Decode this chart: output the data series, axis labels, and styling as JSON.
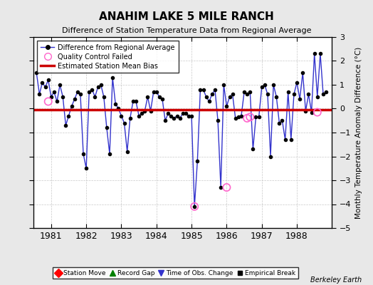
{
  "title": "ANAHIM LAKE 5 MILE RANCH",
  "subtitle": "Difference of Station Temperature Data from Regional Average",
  "ylabel": "Monthly Temperature Anomaly Difference (°C)",
  "credit": "Berkeley Earth",
  "bias": -0.05,
  "ylim": [
    -5,
    3
  ],
  "xlim": [
    1980.5,
    1989.0
  ],
  "xticks": [
    1981,
    1982,
    1983,
    1984,
    1985,
    1986,
    1987,
    1988
  ],
  "yticks": [
    -5,
    -4,
    -3,
    -2,
    -1,
    0,
    1,
    2,
    3
  ],
  "bg_color": "#e8e8e8",
  "plot_bg_color": "#ffffff",
  "line_color": "#3333cc",
  "bias_color": "#cc0000",
  "qc_color": "#ff66cc",
  "data_x": [
    1980.583,
    1980.667,
    1980.75,
    1980.833,
    1980.917,
    1981.0,
    1981.083,
    1981.167,
    1981.25,
    1981.333,
    1981.417,
    1981.5,
    1981.583,
    1981.667,
    1981.75,
    1981.833,
    1981.917,
    1982.0,
    1982.083,
    1982.167,
    1982.25,
    1982.333,
    1982.417,
    1982.5,
    1982.583,
    1982.667,
    1982.75,
    1982.833,
    1982.917,
    1983.0,
    1983.083,
    1983.167,
    1983.25,
    1983.333,
    1983.417,
    1983.5,
    1983.583,
    1983.667,
    1983.75,
    1983.833,
    1983.917,
    1984.0,
    1984.083,
    1984.167,
    1984.25,
    1984.333,
    1984.417,
    1984.5,
    1984.583,
    1984.667,
    1984.75,
    1984.833,
    1984.917,
    1985.0,
    1985.083,
    1985.167,
    1985.25,
    1985.333,
    1985.417,
    1985.5,
    1985.583,
    1985.667,
    1985.75,
    1985.833,
    1985.917,
    1986.0,
    1986.083,
    1986.167,
    1986.25,
    1986.333,
    1986.417,
    1986.5,
    1986.583,
    1986.667,
    1986.75,
    1986.833,
    1986.917,
    1987.0,
    1987.083,
    1987.167,
    1987.25,
    1987.333,
    1987.417,
    1987.5,
    1987.583,
    1987.667,
    1987.75,
    1987.833,
    1987.917,
    1988.0,
    1988.083,
    1988.167,
    1988.25,
    1988.333,
    1988.417,
    1988.5,
    1988.583,
    1988.667,
    1988.75,
    1988.833
  ],
  "data_y": [
    1.5,
    0.6,
    1.1,
    0.9,
    1.2,
    0.5,
    0.7,
    0.3,
    1.0,
    0.5,
    -0.7,
    -0.3,
    0.1,
    0.4,
    0.7,
    0.6,
    -1.9,
    -2.5,
    0.7,
    0.8,
    0.5,
    0.9,
    1.0,
    0.5,
    -0.8,
    -1.9,
    1.3,
    0.2,
    0.0,
    -0.3,
    -0.6,
    -1.8,
    -0.4,
    0.3,
    0.3,
    -0.3,
    -0.2,
    -0.1,
    0.5,
    -0.1,
    0.7,
    0.7,
    0.5,
    0.4,
    -0.5,
    -0.2,
    -0.3,
    -0.4,
    -0.3,
    -0.4,
    -0.2,
    -0.2,
    -0.3,
    -0.3,
    -4.1,
    -2.2,
    0.8,
    0.8,
    0.5,
    0.3,
    0.6,
    0.8,
    -0.5,
    -3.3,
    1.0,
    0.1,
    0.5,
    0.6,
    -0.4,
    -0.35,
    -0.3,
    0.7,
    0.6,
    0.7,
    -1.7,
    -0.35,
    -0.35,
    0.9,
    1.0,
    0.6,
    -2.0,
    1.0,
    0.5,
    -0.6,
    -0.5,
    -1.3,
    0.7,
    -1.3,
    0.6,
    1.1,
    0.4,
    1.5,
    -0.1,
    0.6,
    -0.15,
    2.3,
    0.5,
    2.3,
    0.6,
    0.7
  ],
  "qc_points_x": [
    1980.917,
    1985.083,
    1986.0,
    1986.583,
    1986.667,
    1988.583
  ],
  "qc_points_y": [
    0.3,
    -4.1,
    -3.3,
    -0.4,
    -0.35,
    -0.15
  ]
}
